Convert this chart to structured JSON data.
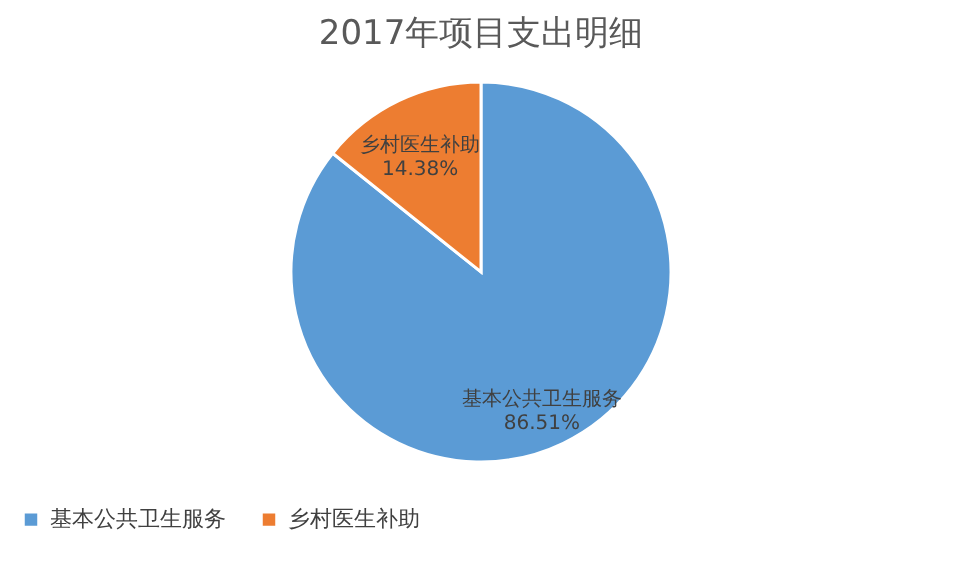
{
  "chart_data": {
    "type": "pie",
    "title": "2017年项目支出明细",
    "categories": [
      "基本公共卫生服务",
      "乡村医生补助"
    ],
    "values": [
      86.51,
      14.38
    ],
    "value_labels": [
      "86.51%",
      "14.38%"
    ],
    "colors": [
      "#5b9bd5",
      "#ed7d31"
    ],
    "legend": "bottom"
  }
}
